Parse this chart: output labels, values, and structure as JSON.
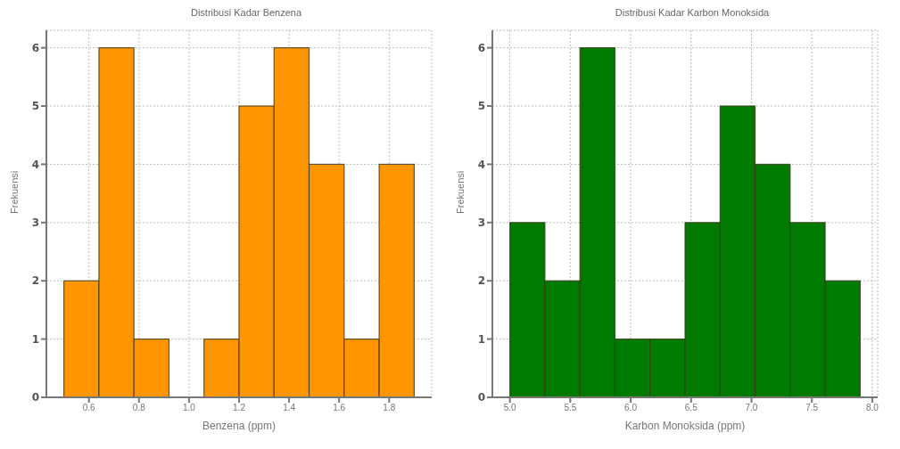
{
  "chart_data": [
    {
      "type": "histogram",
      "title": "Distribusi Kadar Benzena",
      "xlabel": "Benzena (ppm)",
      "ylabel": "Frekuensi",
      "color": "#ff9500",
      "bins": [
        0.5,
        0.64,
        0.78,
        0.92,
        1.06,
        1.2,
        1.34,
        1.48,
        1.62,
        1.76,
        1.9
      ],
      "values": [
        2,
        6,
        1,
        0,
        1,
        5,
        6,
        4,
        1,
        4
      ],
      "xlim": [
        0.43,
        1.97
      ],
      "xticks": [
        0.6,
        0.8,
        {
          "value": 1,
          "label": "1.0"
        },
        1.2,
        1.4,
        1.6,
        1.8
      ],
      "ylim": [
        0,
        6.3
      ],
      "yticks": [
        0,
        1,
        2,
        3,
        4,
        5,
        6
      ],
      "grid": true
    },
    {
      "type": "histogram",
      "title": "Distribusi Kadar Karbon Monoksida",
      "xlabel": "Karbon Monoksida (ppm)",
      "ylabel": "Frekuensi",
      "color": "#007a00",
      "bins": [
        5.0,
        5.29,
        5.58,
        5.87,
        6.16,
        6.45,
        6.74,
        7.03,
        7.32,
        7.61,
        7.9
      ],
      "values": [
        3,
        2,
        6,
        1,
        1,
        3,
        5,
        4,
        3,
        2
      ],
      "xlim": [
        4.855,
        8.045
      ],
      "xticks": [
        {
          "value": 5,
          "label": "5.0"
        },
        5.5,
        {
          "value": 6,
          "label": "6.0"
        },
        6.5,
        {
          "value": 7,
          "label": "7.0"
        },
        7.5,
        {
          "value": 8,
          "label": "8.0"
        }
      ],
      "ylim": [
        0,
        6.3
      ],
      "yticks": [
        0,
        1,
        2,
        3,
        4,
        5,
        6
      ],
      "grid": true
    }
  ]
}
